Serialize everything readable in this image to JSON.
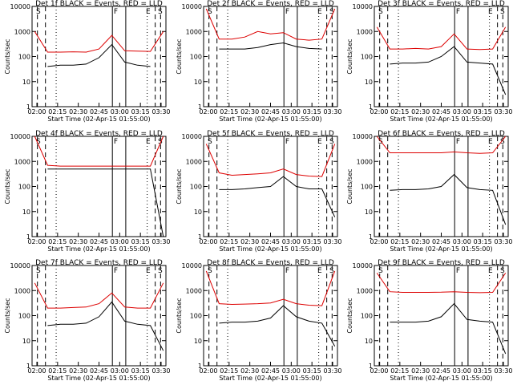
{
  "chart_data": [
    {
      "type": "line",
      "title": "Det 1f BLACK = Events, RED = LLD",
      "xlabel": "Start Time (02-Apr-15 01:55:00)",
      "ylabel": "Counts/sec",
      "xticks": [
        "02:00",
        "02:15",
        "02:30",
        "02:45",
        "03:00",
        "03:15",
        "03:30"
      ],
      "yticks": [
        "1",
        "10",
        "100",
        "1000",
        "10000"
      ],
      "yscale": "log",
      "ylim": [
        1,
        10000
      ],
      "markers": [
        "S",
        "F",
        "E",
        "S"
      ],
      "series": [
        {
          "name": "LLD",
          "color": "#dd0000",
          "values": [
            1000,
            150,
            150,
            155,
            150,
            200,
            700,
            170,
            165,
            160,
            1000
          ]
        },
        {
          "name": "Events",
          "color": "#000000",
          "values": [
            null,
            40,
            45,
            45,
            50,
            90,
            300,
            60,
            45,
            40,
            null
          ]
        }
      ]
    },
    {
      "type": "line",
      "title": "Det 2f BLACK = Events, RED = LLD",
      "xlabel": "Start Time (02-Apr-15 01:55:00)",
      "ylabel": "Counts/sec",
      "xticks": [
        "02:00",
        "02:15",
        "02:30",
        "02:45",
        "03:00",
        "03:15",
        "03:30"
      ],
      "yticks": [
        "1",
        "10",
        "100",
        "1000",
        "10000"
      ],
      "yscale": "log",
      "ylim": [
        1,
        10000
      ],
      "markers": [
        "S",
        "F",
        "E",
        "S"
      ],
      "series": [
        {
          "name": "LLD",
          "color": "#dd0000",
          "values": [
            8000,
            500,
            500,
            600,
            1000,
            800,
            900,
            500,
            450,
            500,
            8000
          ]
        },
        {
          "name": "Events",
          "color": "#000000",
          "values": [
            null,
            200,
            200,
            200,
            230,
            300,
            350,
            250,
            210,
            200,
            null
          ]
        }
      ]
    },
    {
      "type": "line",
      "title": "Det 3f BLACK = Events, RED = LLD",
      "xlabel": "Start Time (02-Apr-15 01:55:00)",
      "ylabel": "Counts/sec",
      "xticks": [
        "02:00",
        "02:15",
        "02:30",
        "02:45",
        "03:00",
        "03:15",
        "03:30"
      ],
      "yticks": [
        "1",
        "10",
        "100",
        "1000",
        "10000"
      ],
      "yscale": "log",
      "ylim": [
        1,
        10000
      ],
      "markers": [
        "S",
        "F",
        "E",
        "S"
      ],
      "series": [
        {
          "name": "LLD",
          "color": "#dd0000",
          "values": [
            1500,
            200,
            200,
            210,
            200,
            250,
            800,
            200,
            190,
            200,
            1500
          ]
        },
        {
          "name": "Events",
          "color": "#000000",
          "values": [
            null,
            50,
            55,
            55,
            60,
            100,
            250,
            60,
            55,
            50,
            3
          ]
        }
      ]
    },
    {
      "type": "line",
      "title": "Det 4f BLACK = Events, RED = LLD",
      "xlabel": "Start Time (02-Apr-15 01:55:00)",
      "ylabel": "Counts/sec",
      "xticks": [
        "02:00",
        "02:15",
        "02:30",
        "02:45",
        "03:00",
        "03:15",
        "03:30"
      ],
      "yticks": [
        "1",
        "10",
        "100",
        "1000",
        "10000"
      ],
      "yscale": "log",
      "ylim": [
        1,
        10000
      ],
      "markers": [
        "S",
        "F",
        "E",
        "S"
      ],
      "series": [
        {
          "name": "LLD",
          "color": "#dd0000",
          "values": [
            10000,
            700,
            650,
            650,
            650,
            650,
            650,
            650,
            650,
            650,
            10000
          ]
        },
        {
          "name": "Events",
          "color": "#000000",
          "values": [
            null,
            500,
            500,
            500,
            500,
            500,
            500,
            500,
            500,
            500,
            1
          ]
        }
      ]
    },
    {
      "type": "line",
      "title": "Det 5f BLACK = Events, RED = LLD",
      "xlabel": "Start Time (02-Apr-15 01:55:00)",
      "ylabel": "Counts/sec",
      "xticks": [
        "02:00",
        "02:15",
        "02:30",
        "02:45",
        "03:00",
        "03:15",
        "03:30"
      ],
      "yticks": [
        "1",
        "10",
        "100",
        "1000",
        "10000"
      ],
      "yscale": "log",
      "ylim": [
        1,
        10000
      ],
      "markers": [
        "S",
        "F",
        "E",
        "S"
      ],
      "series": [
        {
          "name": "LLD",
          "color": "#dd0000",
          "values": [
            5000,
            350,
            280,
            300,
            320,
            350,
            500,
            300,
            260,
            250,
            5000
          ]
        },
        {
          "name": "Events",
          "color": "#000000",
          "values": [
            null,
            75,
            75,
            80,
            90,
            100,
            250,
            100,
            80,
            80,
            6
          ]
        }
      ]
    },
    {
      "type": "line",
      "title": "Det 6f BLACK = Events, RED = LLD",
      "xlabel": "Start Time (02-Apr-15 01:55:00)",
      "ylabel": "Counts/sec",
      "xticks": [
        "02:00",
        "02:15",
        "02:30",
        "02:45",
        "03:00",
        "03:15",
        "03:30"
      ],
      "yticks": [
        "1",
        "10",
        "100",
        "1000",
        "10000"
      ],
      "yscale": "log",
      "ylim": [
        1,
        10000
      ],
      "markers": [
        "S",
        "F",
        "E",
        "S"
      ],
      "series": [
        {
          "name": "LLD",
          "color": "#dd0000",
          "values": [
            10000,
            2200,
            2200,
            2200,
            2200,
            2200,
            2400,
            2200,
            2100,
            2200,
            10000
          ]
        },
        {
          "name": "Events",
          "color": "#000000",
          "values": [
            null,
            70,
            75,
            75,
            80,
            100,
            300,
            90,
            75,
            70,
            3
          ]
        }
      ]
    },
    {
      "type": "line",
      "title": "Det 7f BLACK = Events, RED = LLD",
      "xlabel": "Start Time (02-Apr-15 01:55:00)",
      "ylabel": "Counts/sec",
      "xticks": [
        "02:00",
        "02:15",
        "02:30",
        "02:45",
        "03:00",
        "03:15",
        "03:30"
      ],
      "yticks": [
        "1",
        "10",
        "100",
        "1000",
        "10000"
      ],
      "yscale": "log",
      "ylim": [
        1,
        10000
      ],
      "markers": [
        "S",
        "F",
        "E",
        "S"
      ],
      "series": [
        {
          "name": "LLD",
          "color": "#dd0000",
          "values": [
            2000,
            200,
            200,
            210,
            220,
            300,
            800,
            220,
            200,
            200,
            2000
          ]
        },
        {
          "name": "Events",
          "color": "#000000",
          "values": [
            null,
            40,
            45,
            45,
            50,
            90,
            350,
            60,
            45,
            40,
            4
          ]
        }
      ]
    },
    {
      "type": "line",
      "title": "Det 8f BLACK = Events, RED = LLD",
      "xlabel": "Start Time (02-Apr-15 01:55:00)",
      "ylabel": "Counts/sec",
      "xticks": [
        "02:00",
        "02:15",
        "02:30",
        "02:45",
        "03:00",
        "03:15",
        "03:30"
      ],
      "yticks": [
        "1",
        "10",
        "100",
        "1000",
        "10000"
      ],
      "yscale": "log",
      "ylim": [
        1,
        10000
      ],
      "markers": [
        "S",
        "F",
        "E",
        "S"
      ],
      "series": [
        {
          "name": "LLD",
          "color": "#dd0000",
          "values": [
            6000,
            300,
            280,
            290,
            300,
            320,
            450,
            300,
            260,
            250,
            6000
          ]
        },
        {
          "name": "Events",
          "color": "#000000",
          "values": [
            null,
            50,
            55,
            55,
            60,
            80,
            250,
            90,
            60,
            50,
            6
          ]
        }
      ]
    },
    {
      "type": "line",
      "title": "Det 9f BLACK = Events, RED = LLD",
      "xlabel": "Start Time (02-Apr-15 01:55:00)",
      "ylabel": "Counts/sec",
      "xticks": [
        "02:00",
        "02:15",
        "02:30",
        "02:45",
        "03:00",
        "03:15",
        "03:30"
      ],
      "yticks": [
        "1",
        "10",
        "100",
        "1000",
        "10000"
      ],
      "yscale": "log",
      "ylim": [
        1,
        10000
      ],
      "markers": [
        "S",
        "F",
        "E",
        "S"
      ],
      "series": [
        {
          "name": "LLD",
          "color": "#dd0000",
          "values": [
            5000,
            900,
            850,
            850,
            850,
            860,
            900,
            850,
            820,
            850,
            5000
          ]
        },
        {
          "name": "Events",
          "color": "#000000",
          "values": [
            null,
            55,
            55,
            55,
            60,
            90,
            300,
            70,
            60,
            55,
            3
          ]
        }
      ]
    }
  ]
}
